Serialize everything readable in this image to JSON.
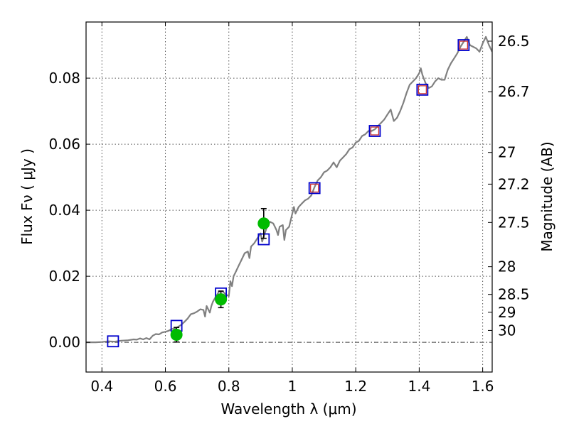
{
  "chart_data": {
    "type": "scatter",
    "title": "",
    "xlabel": "Wavelength  λ (μm)",
    "ylabel": "Flux  Fν  ( μJy )",
    "ylabel_right": "Magnitude (AB)",
    "xlim": [
      0.35,
      1.63
    ],
    "ylim": [
      -0.009,
      0.097
    ],
    "grid": true,
    "x_ticks": [
      0.4,
      0.6,
      0.8,
      1.0,
      1.2,
      1.4,
      1.6
    ],
    "x_tick_labels": [
      "0.4",
      "0.6",
      "0.8",
      "1",
      "1.2",
      "1.4",
      "1.6"
    ],
    "y_ticks": [
      0.0,
      0.02,
      0.04,
      0.06,
      0.08
    ],
    "y_tick_labels": [
      "0.00",
      "0.02",
      "0.04",
      "0.06",
      "0.08"
    ],
    "right_axis": {
      "label": "Magnitude (AB)",
      "ticks": [
        {
          "mag": "26.5",
          "flux": 0.0912
        },
        {
          "mag": "26.7",
          "flux": 0.0759
        },
        {
          "mag": "27",
          "flux": 0.0575
        },
        {
          "mag": "27.2",
          "flux": 0.0479
        },
        {
          "mag": "27.5",
          "flux": 0.0363
        },
        {
          "mag": "28",
          "flux": 0.0229
        },
        {
          "mag": "28.5",
          "flux": 0.0145
        },
        {
          "mag": "29",
          "flux": 0.0091
        },
        {
          "mag": "30",
          "flux": 0.0036
        }
      ]
    },
    "zero_line": 0.0,
    "series": [
      {
        "kind": "line",
        "color": "#808080",
        "points": [
          [
            0.35,
            0.0
          ],
          [
            0.38,
            0.0
          ],
          [
            0.4,
            0.0001
          ],
          [
            0.42,
            0.0003
          ],
          [
            0.44,
            0.0002
          ],
          [
            0.46,
            0.0005
          ],
          [
            0.48,
            0.0006
          ],
          [
            0.5,
            0.0009
          ],
          [
            0.51,
            0.0008
          ],
          [
            0.52,
            0.0012
          ],
          [
            0.53,
            0.0009
          ],
          [
            0.54,
            0.0013
          ],
          [
            0.55,
            0.0009
          ],
          [
            0.56,
            0.002
          ],
          [
            0.57,
            0.0025
          ],
          [
            0.58,
            0.0024
          ],
          [
            0.59,
            0.003
          ],
          [
            0.6,
            0.0032
          ],
          [
            0.61,
            0.0035
          ],
          [
            0.62,
            0.004
          ],
          [
            0.63,
            0.0042
          ],
          [
            0.64,
            0.0047
          ],
          [
            0.65,
            0.0053
          ],
          [
            0.66,
            0.0062
          ],
          [
            0.67,
            0.0072
          ],
          [
            0.68,
            0.0085
          ],
          [
            0.69,
            0.0088
          ],
          [
            0.7,
            0.0093
          ],
          [
            0.71,
            0.01
          ],
          [
            0.72,
            0.0098
          ],
          [
            0.725,
            0.0078
          ],
          [
            0.73,
            0.011
          ],
          [
            0.74,
            0.009
          ],
          [
            0.745,
            0.011
          ],
          [
            0.75,
            0.0123
          ],
          [
            0.76,
            0.014
          ],
          [
            0.77,
            0.0155
          ],
          [
            0.78,
            0.0155
          ],
          [
            0.79,
            0.0145
          ],
          [
            0.8,
            0.014
          ],
          [
            0.805,
            0.0185
          ],
          [
            0.81,
            0.017
          ],
          [
            0.815,
            0.02
          ],
          [
            0.82,
            0.021
          ],
          [
            0.83,
            0.023
          ],
          [
            0.84,
            0.025
          ],
          [
            0.85,
            0.027
          ],
          [
            0.86,
            0.0275
          ],
          [
            0.865,
            0.0255
          ],
          [
            0.87,
            0.029
          ],
          [
            0.88,
            0.03
          ],
          [
            0.89,
            0.0315
          ],
          [
            0.9,
            0.033
          ],
          [
            0.905,
            0.0305
          ],
          [
            0.91,
            0.032
          ],
          [
            0.92,
            0.035
          ],
          [
            0.93,
            0.0365
          ],
          [
            0.94,
            0.036
          ],
          [
            0.95,
            0.034
          ],
          [
            0.955,
            0.0325
          ],
          [
            0.96,
            0.035
          ],
          [
            0.97,
            0.0355
          ],
          [
            0.975,
            0.031
          ],
          [
            0.98,
            0.034
          ],
          [
            0.99,
            0.035
          ],
          [
            1.0,
            0.039
          ],
          [
            1.005,
            0.041
          ],
          [
            1.01,
            0.039
          ],
          [
            1.02,
            0.041
          ],
          [
            1.03,
            0.042
          ],
          [
            1.04,
            0.043
          ],
          [
            1.05,
            0.0435
          ],
          [
            1.06,
            0.0445
          ],
          [
            1.07,
            0.047
          ],
          [
            1.08,
            0.049
          ],
          [
            1.09,
            0.05
          ],
          [
            1.1,
            0.0515
          ],
          [
            1.11,
            0.052
          ],
          [
            1.12,
            0.053
          ],
          [
            1.13,
            0.0545
          ],
          [
            1.14,
            0.053
          ],
          [
            1.15,
            0.055
          ],
          [
            1.16,
            0.056
          ],
          [
            1.17,
            0.057
          ],
          [
            1.18,
            0.0585
          ],
          [
            1.19,
            0.059
          ],
          [
            1.2,
            0.0605
          ],
          [
            1.21,
            0.061
          ],
          [
            1.22,
            0.0625
          ],
          [
            1.23,
            0.063
          ],
          [
            1.24,
            0.064
          ],
          [
            1.25,
            0.064
          ],
          [
            1.26,
            0.0645
          ],
          [
            1.27,
            0.0655
          ],
          [
            1.28,
            0.0665
          ],
          [
            1.29,
            0.0675
          ],
          [
            1.3,
            0.069
          ],
          [
            1.31,
            0.0705
          ],
          [
            1.32,
            0.067
          ],
          [
            1.33,
            0.068
          ],
          [
            1.34,
            0.07
          ],
          [
            1.35,
            0.0725
          ],
          [
            1.36,
            0.0755
          ],
          [
            1.37,
            0.078
          ],
          [
            1.38,
            0.079
          ],
          [
            1.39,
            0.08
          ],
          [
            1.4,
            0.0815
          ],
          [
            1.405,
            0.083
          ],
          [
            1.41,
            0.081
          ],
          [
            1.42,
            0.0785
          ],
          [
            1.43,
            0.077
          ],
          [
            1.44,
            0.0775
          ],
          [
            1.45,
            0.079
          ],
          [
            1.46,
            0.08
          ],
          [
            1.47,
            0.0795
          ],
          [
            1.48,
            0.0795
          ],
          [
            1.49,
            0.0825
          ],
          [
            1.5,
            0.0845
          ],
          [
            1.51,
            0.086
          ],
          [
            1.52,
            0.0875
          ],
          [
            1.53,
            0.0895
          ],
          [
            1.54,
            0.091
          ],
          [
            1.55,
            0.0925
          ],
          [
            1.56,
            0.09
          ],
          [
            1.57,
            0.0895
          ],
          [
            1.58,
            0.089
          ],
          [
            1.59,
            0.088
          ],
          [
            1.6,
            0.0905
          ],
          [
            1.61,
            0.0925
          ],
          [
            1.62,
            0.09
          ],
          [
            1.63,
            0.088
          ]
        ]
      },
      {
        "kind": "square-markers",
        "color": "#0000cc",
        "points": [
          [
            0.435,
            0.0003
          ],
          [
            0.635,
            0.005
          ],
          [
            0.775,
            0.0148
          ],
          [
            0.91,
            0.0312
          ],
          [
            1.07,
            0.0467
          ],
          [
            1.26,
            0.064
          ],
          [
            1.41,
            0.0765
          ],
          [
            1.54,
            0.09
          ]
        ]
      },
      {
        "kind": "square-markers",
        "color": "#cc3333",
        "points": [
          [
            1.07,
            0.0467
          ],
          [
            1.26,
            0.064
          ],
          [
            1.41,
            0.0765
          ],
          [
            1.54,
            0.09
          ]
        ]
      },
      {
        "kind": "circle-markers-with-errorbars",
        "color": "#00bb00",
        "points": [
          {
            "x": 0.635,
            "y": 0.0023,
            "err": 0.0022
          },
          {
            "x": 0.775,
            "y": 0.013,
            "err": 0.0025
          },
          {
            "x": 0.91,
            "y": 0.036,
            "err": 0.0045
          }
        ]
      }
    ]
  }
}
